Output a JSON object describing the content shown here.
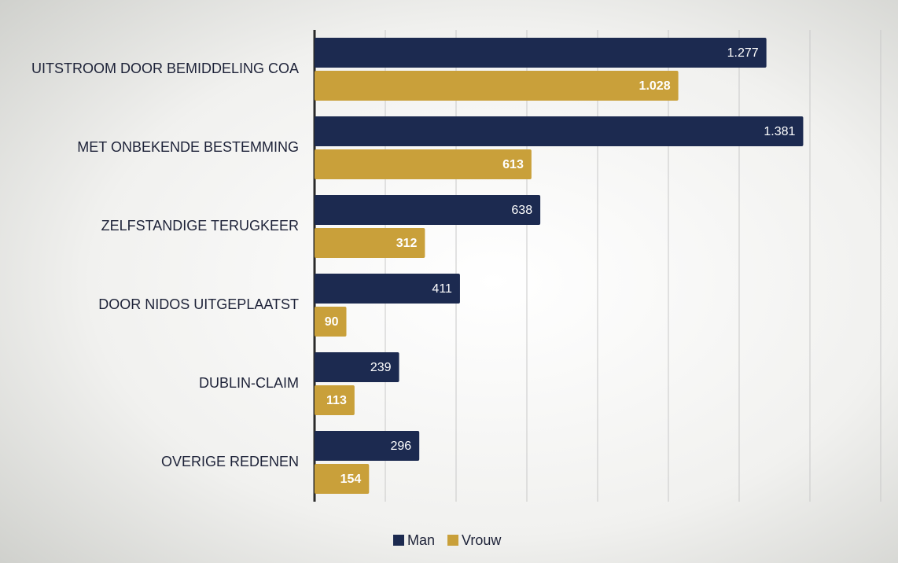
{
  "chart_data": {
    "type": "hbar",
    "categories": [
      "UITSTROOM DOOR BEMIDDELING COA",
      "MET ONBEKENDE BESTEMMING",
      "ZELFSTANDIGE TERUGKEER",
      "DOOR NIDOS UITGEPLAATST",
      "DUBLIN-CLAIM",
      "OVERIGE REDENEN"
    ],
    "series": [
      {
        "name": "Man",
        "color": "#1c2a50",
        "values": [
          1277,
          1381,
          638,
          411,
          239,
          296
        ],
        "value_labels": [
          "1.277",
          "1.381",
          "638",
          "411",
          "239",
          "296"
        ]
      },
      {
        "name": "Vrouw",
        "color": "#c9a03a",
        "values": [
          1028,
          613,
          312,
          90,
          113,
          154
        ],
        "value_labels": [
          "1.028",
          "613",
          "312",
          "90",
          "113",
          "154"
        ]
      }
    ],
    "xlim": [
      0,
      1600
    ],
    "xticks": [
      0,
      200,
      400,
      600,
      800,
      1000,
      1200,
      1400,
      1600
    ],
    "grid": true,
    "legend": "bottom"
  }
}
